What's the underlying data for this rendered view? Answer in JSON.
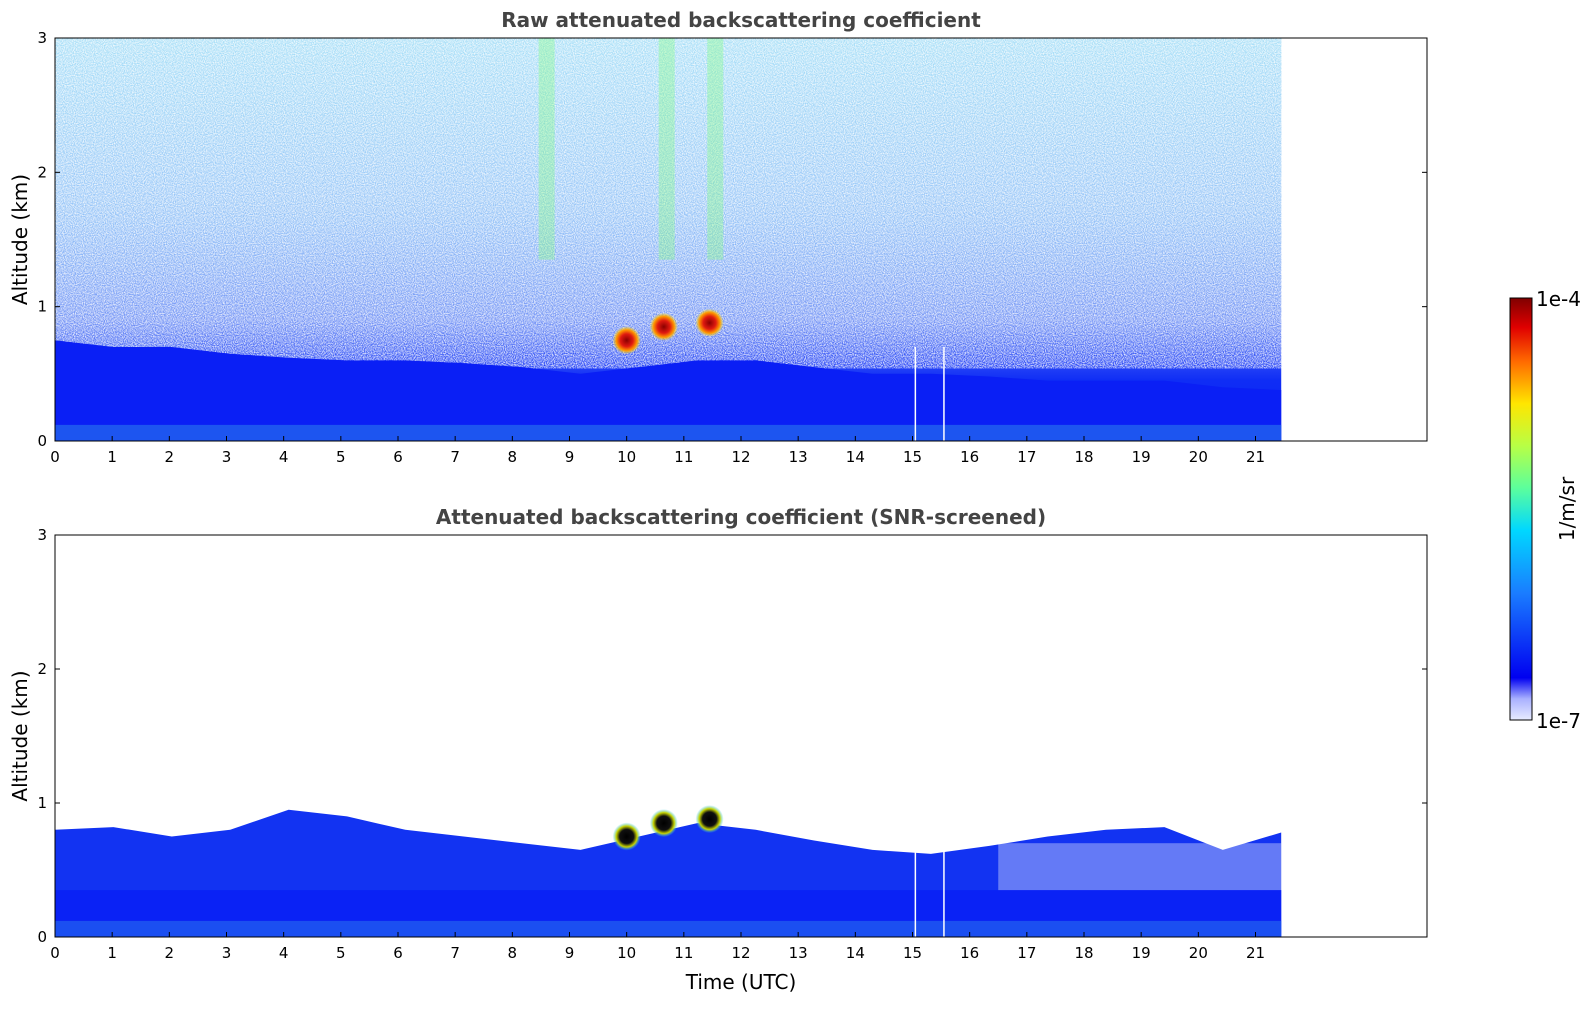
{
  "chart_data": [
    {
      "type": "heatmap",
      "title": "Raw attenuated backscattering coefficient",
      "xlabel": "",
      "ylabel": "Altitude (km)",
      "xlim": [
        0,
        24
      ],
      "ylim": [
        0,
        3
      ],
      "x_ticks": [
        0,
        1,
        2,
        3,
        4,
        5,
        6,
        7,
        8,
        9,
        10,
        11,
        12,
        13,
        14,
        15,
        16,
        17,
        18,
        19,
        20,
        21
      ],
      "y_ticks": [
        0,
        1,
        2,
        3
      ],
      "data_end_time": 21.45,
      "boundary_layer_top_km": [
        0.75,
        0.7,
        0.7,
        0.65,
        0.62,
        0.6,
        0.6,
        0.58,
        0.55,
        0.5,
        0.55,
        0.6,
        0.6,
        0.55,
        0.5,
        0.5,
        0.48,
        0.45,
        0.45,
        0.45,
        0.4,
        0.38
      ],
      "features": [
        {
          "time": 10.0,
          "altitude_km": 0.75,
          "level": "high"
        },
        {
          "time": 10.65,
          "altitude_km": 0.85,
          "level": "high"
        },
        {
          "time": 11.45,
          "altitude_km": 0.88,
          "level": "high"
        }
      ],
      "data_gaps": [
        15.05,
        15.55
      ],
      "grid": false
    },
    {
      "type": "heatmap",
      "title": "Attenuated backscattering coefficient (SNR-screened)",
      "xlabel": "Time (UTC)",
      "ylabel": "Altitude (km)",
      "xlim": [
        0,
        24
      ],
      "ylim": [
        0,
        3
      ],
      "x_ticks": [
        0,
        1,
        2,
        3,
        4,
        5,
        6,
        7,
        8,
        9,
        10,
        11,
        12,
        13,
        14,
        15,
        16,
        17,
        18,
        19,
        20,
        21
      ],
      "y_ticks": [
        0,
        1,
        2,
        3
      ],
      "data_end_time": 21.45,
      "boundary_layer_top_km": [
        0.8,
        0.82,
        0.75,
        0.8,
        0.95,
        0.9,
        0.8,
        0.75,
        0.7,
        0.65,
        0.75,
        0.85,
        0.8,
        0.72,
        0.65,
        0.62,
        0.68,
        0.75,
        0.8,
        0.82,
        0.65,
        0.78
      ],
      "features": [
        {
          "time": 10.0,
          "altitude_km": 0.75,
          "level": "high"
        },
        {
          "time": 10.65,
          "altitude_km": 0.85,
          "level": "high"
        },
        {
          "time": 11.45,
          "altitude_km": 0.88,
          "level": "high"
        }
      ],
      "data_gaps": [
        15.05,
        15.55
      ],
      "grid": false
    }
  ],
  "colorbar": {
    "max_label": "1e-4",
    "min_label": "1e-7",
    "unit_label": "1/m/sr",
    "colormap": "jet",
    "placement": "right"
  },
  "colors": {
    "background_blue": "#0a1ff5",
    "mid_blue": "#1e64ff",
    "cyan": "#19c8ff",
    "green": "#7dff7a",
    "yellow": "#ffe600",
    "red": "#e21a1a",
    "dark_red": "#800000"
  }
}
